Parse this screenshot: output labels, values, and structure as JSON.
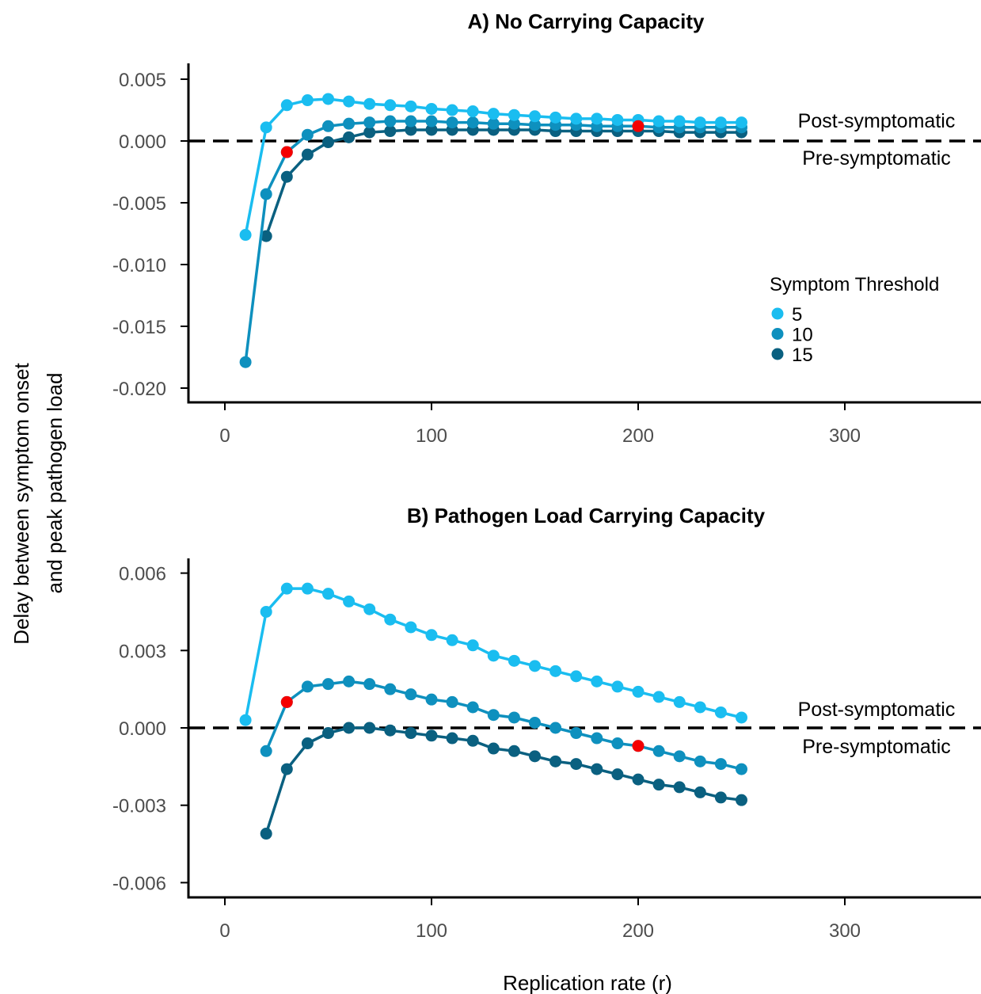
{
  "figure": {
    "ylabel_line1": "Delay between symptom onset",
    "ylabel_line2": "and peak pathogen load",
    "xlabel": "Replication rate (r)"
  },
  "legend": {
    "title": "Symptom Threshold"
  },
  "colors": {
    "threshold_5": "#1ABDF0",
    "threshold_10": "#0E90BE",
    "threshold_15": "#0A6080",
    "highlight": "#F50000",
    "axis": "#000000"
  },
  "chart_data": [
    {
      "type": "line",
      "title": "A) No Carrying Capacity",
      "xlim": [
        -17,
        365
      ],
      "ylim": [
        -0.0211,
        0.0061
      ],
      "x_ticks": [
        0,
        100,
        200,
        300
      ],
      "y_ticks": [
        0.005,
        0,
        -0.005,
        -0.01,
        -0.015,
        -0.02
      ],
      "y_tick_labels": [
        "0.005",
        "0.000",
        "-0.005",
        "-0.010",
        "-0.015",
        "-0.020"
      ],
      "reference_line": {
        "y": 0,
        "style": "dashed",
        "label_above": "Post-symptomatic",
        "label_below": "Pre-symptomatic"
      },
      "legend_position": "right",
      "series": [
        {
          "name": "5",
          "x": [
            10,
            20,
            30,
            40,
            50,
            60,
            70,
            80,
            90,
            100,
            110,
            120,
            130,
            140,
            150,
            160,
            170,
            180,
            190,
            200,
            210,
            220,
            230,
            240,
            250
          ],
          "values": [
            -0.0076,
            0.0011,
            0.0029,
            0.0033,
            0.0034,
            0.0032,
            0.003,
            0.0029,
            0.0028,
            0.0026,
            0.0025,
            0.0024,
            0.0022,
            0.0021,
            0.002,
            0.0019,
            0.0018,
            0.0018,
            0.0017,
            0.0017,
            0.0016,
            0.0016,
            0.0015,
            0.0015,
            0.0015
          ]
        },
        {
          "name": "10",
          "x": [
            10,
            20,
            30,
            40,
            50,
            60,
            70,
            80,
            90,
            100,
            110,
            120,
            130,
            140,
            150,
            160,
            170,
            180,
            190,
            200,
            210,
            220,
            230,
            240,
            250
          ],
          "values": [
            -0.0179,
            -0.0043,
            -0.0009,
            0.0005,
            0.0012,
            0.0014,
            0.0015,
            0.0016,
            0.0016,
            0.0016,
            0.0015,
            0.0015,
            0.0014,
            0.0014,
            0.0013,
            0.0013,
            0.0013,
            0.0012,
            0.0012,
            0.0012,
            0.0011,
            0.0011,
            0.0011,
            0.0011,
            0.0011
          ]
        },
        {
          "name": "15",
          "x": [
            20,
            30,
            40,
            50,
            60,
            70,
            80,
            90,
            100,
            110,
            120,
            130,
            140,
            150,
            160,
            170,
            180,
            190,
            200,
            210,
            220,
            230,
            240,
            250
          ],
          "values": [
            -0.0077,
            -0.0029,
            -0.0011,
            -0.0001,
            0.0003,
            0.0007,
            0.0008,
            0.0009,
            0.0009,
            0.0009,
            0.0009,
            0.0009,
            0.0009,
            0.0009,
            0.0008,
            0.0008,
            0.0008,
            0.0008,
            0.0008,
            0.0008,
            0.0007,
            0.0007,
            0.0007,
            0.0007
          ]
        }
      ],
      "highlight_points": [
        {
          "x": 30,
          "y": -0.0009
        },
        {
          "x": 200,
          "y": 0.0012
        }
      ]
    },
    {
      "type": "line",
      "title": "B) Pathogen Load Carrying Capacity",
      "xlim": [
        -17,
        365
      ],
      "ylim": [
        -0.0066,
        0.0066
      ],
      "x_ticks": [
        0,
        100,
        200,
        300
      ],
      "y_ticks": [
        0.006,
        0.003,
        0,
        -0.003,
        -0.006
      ],
      "y_tick_labels": [
        "0.006",
        "0.003",
        "0.000",
        "-0.003",
        "-0.006"
      ],
      "reference_line": {
        "y": 0,
        "style": "dashed",
        "label_above": "Post-symptomatic",
        "label_below": "Pre-symptomatic"
      },
      "series": [
        {
          "name": "5",
          "x": [
            10,
            20,
            30,
            40,
            50,
            60,
            70,
            80,
            90,
            100,
            110,
            120,
            130,
            140,
            150,
            160,
            170,
            180,
            190,
            200,
            210,
            220,
            230,
            240,
            250
          ],
          "values": [
            0.0003,
            0.0045,
            0.0054,
            0.0054,
            0.0052,
            0.0049,
            0.0046,
            0.0042,
            0.0039,
            0.0036,
            0.0034,
            0.0032,
            0.0028,
            0.0026,
            0.0024,
            0.0022,
            0.002,
            0.0018,
            0.0016,
            0.0014,
            0.0012,
            0.001,
            0.0008,
            0.0006,
            0.0004
          ]
        },
        {
          "name": "10",
          "x": [
            20,
            30,
            40,
            50,
            60,
            70,
            80,
            90,
            100,
            110,
            120,
            130,
            140,
            150,
            160,
            170,
            180,
            190,
            200,
            210,
            220,
            230,
            240,
            250
          ],
          "values": [
            -0.0009,
            0.001,
            0.0016,
            0.0017,
            0.0018,
            0.0017,
            0.0015,
            0.0013,
            0.0011,
            0.001,
            0.0008,
            0.0005,
            0.0004,
            0.0002,
            0.0,
            -0.0002,
            -0.0004,
            -0.0006,
            -0.0007,
            -0.0009,
            -0.0011,
            -0.0013,
            -0.0014,
            -0.0016
          ]
        },
        {
          "name": "15",
          "x": [
            20,
            30,
            40,
            50,
            60,
            70,
            80,
            90,
            100,
            110,
            120,
            130,
            140,
            150,
            160,
            170,
            180,
            190,
            200,
            210,
            220,
            230,
            240,
            250
          ],
          "values": [
            -0.0041,
            -0.0016,
            -0.0006,
            -0.0002,
            0.0,
            0.0,
            -0.0001,
            -0.0002,
            -0.0003,
            -0.0004,
            -0.0005,
            -0.0008,
            -0.0009,
            -0.0011,
            -0.0013,
            -0.0014,
            -0.0016,
            -0.0018,
            -0.002,
            -0.0022,
            -0.0023,
            -0.0025,
            -0.0027,
            -0.0028
          ]
        }
      ],
      "highlight_points": [
        {
          "x": 30,
          "y": 0.001
        },
        {
          "x": 200,
          "y": -0.0007
        }
      ]
    }
  ]
}
